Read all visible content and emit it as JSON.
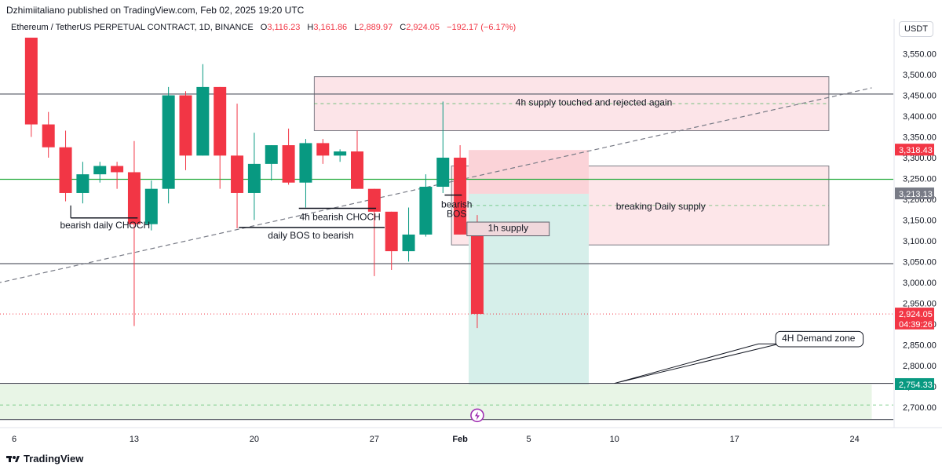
{
  "header": {
    "published": "Dzhimiitaliano published on TradingView.com, Feb 02, 2025 19:20 UTC"
  },
  "legend": {
    "symbol": "Ethereum / TetherUS PERPETUAL CONTRACT, 1D, BINANCE",
    "o_label": "O",
    "o_value": "3,116.23",
    "h_label": "H",
    "h_value": "3,161.86",
    "l_label": "L",
    "l_value": "2,889.97",
    "c_label": "C",
    "c_value": "2,924.05",
    "change": "−192.17 (−6.17%)"
  },
  "currency": "USDT",
  "footer": {
    "brand": "TradingView"
  },
  "colors": {
    "up": "#089981",
    "down": "#f23645",
    "supply": "#fce4e8",
    "demand": "#e7f5e6",
    "target": "#d6f0ec"
  },
  "chart_data": {
    "type": "candlestick",
    "y_ticks": [
      "3,550.00",
      "3,500.00",
      "3,450.00",
      "3,400.00",
      "3,350.00",
      "3,300.00",
      "3,250.00",
      "3,200.00",
      "3,150.00",
      "3,100.00",
      "3,050.00",
      "3,000.00",
      "2,950.00",
      "2,900.00",
      "2,850.00",
      "2,800.00",
      "2,750.00",
      "2,700.00"
    ],
    "y_tick_values": [
      3550,
      3500,
      3450,
      3400,
      3350,
      3300,
      3250,
      3200,
      3150,
      3100,
      3050,
      3000,
      2950,
      2900,
      2850,
      2800,
      2750,
      2700
    ],
    "x_ticks": [
      "6",
      "13",
      "20",
      "27",
      "Feb",
      "5",
      "10",
      "17",
      "24"
    ],
    "x_tick_days": [
      0,
      7,
      14,
      21,
      26,
      30,
      35,
      42,
      49
    ],
    "ylim": [
      2665,
      3595
    ],
    "candles": [
      {
        "d": 1,
        "o": 3690,
        "h": 3700,
        "l": 3350,
        "c": 3380
      },
      {
        "d": 2,
        "o": 3380,
        "h": 3410,
        "l": 3300,
        "c": 3325
      },
      {
        "d": 3,
        "o": 3325,
        "h": 3365,
        "l": 3195,
        "c": 3215
      },
      {
        "d": 4,
        "o": 3215,
        "h": 3290,
        "l": 3190,
        "c": 3260
      },
      {
        "d": 5,
        "o": 3260,
        "h": 3290,
        "l": 3240,
        "c": 3280
      },
      {
        "d": 6,
        "o": 3280,
        "h": 3290,
        "l": 3225,
        "c": 3265
      },
      {
        "d": 7,
        "o": 3265,
        "h": 3340,
        "l": 2895,
        "c": 3140
      },
      {
        "d": 8,
        "o": 3140,
        "h": 3245,
        "l": 3125,
        "c": 3225
      },
      {
        "d": 9,
        "o": 3225,
        "h": 3470,
        "l": 3190,
        "c": 3450
      },
      {
        "d": 10,
        "o": 3450,
        "h": 3460,
        "l": 3270,
        "c": 3305
      },
      {
        "d": 11,
        "o": 3305,
        "h": 3525,
        "l": 3305,
        "c": 3470
      },
      {
        "d": 12,
        "o": 3470,
        "h": 3470,
        "l": 3225,
        "c": 3305
      },
      {
        "d": 13,
        "o": 3305,
        "h": 3430,
        "l": 3130,
        "c": 3215
      },
      {
        "d": 14,
        "o": 3215,
        "h": 3360,
        "l": 3150,
        "c": 3285
      },
      {
        "d": 15,
        "o": 3285,
        "h": 3330,
        "l": 3245,
        "c": 3330
      },
      {
        "d": 16,
        "o": 3330,
        "h": 3370,
        "l": 3235,
        "c": 3240
      },
      {
        "d": 17,
        "o": 3240,
        "h": 3345,
        "l": 3180,
        "c": 3335
      },
      {
        "d": 18,
        "o": 3335,
        "h": 3345,
        "l": 3285,
        "c": 3305
      },
      {
        "d": 19,
        "o": 3305,
        "h": 3320,
        "l": 3290,
        "c": 3315
      },
      {
        "d": 20,
        "o": 3315,
        "h": 3365,
        "l": 3225,
        "c": 3225
      },
      {
        "d": 21,
        "o": 3225,
        "h": 3225,
        "l": 3015,
        "c": 3170
      },
      {
        "d": 22,
        "o": 3170,
        "h": 3170,
        "l": 3030,
        "c": 3075
      },
      {
        "d": 23,
        "o": 3075,
        "h": 3180,
        "l": 3050,
        "c": 3115
      },
      {
        "d": 24,
        "o": 3115,
        "h": 3260,
        "l": 3110,
        "c": 3230
      },
      {
        "d": 25,
        "o": 3230,
        "h": 3435,
        "l": 3215,
        "c": 3300
      },
      {
        "d": 26,
        "o": 3300,
        "h": 3330,
        "l": 3115,
        "c": 3115
      },
      {
        "d": 27,
        "o": 3116.23,
        "h": 3161.86,
        "l": 2889.97,
        "c": 2924.05
      }
    ],
    "zones": [
      {
        "name": "4h supply",
        "d0": 17.5,
        "d1": 47.5,
        "top": 3495,
        "bottom": 3365
      },
      {
        "name": "daily supply",
        "d0": 25.5,
        "d1": 47.5,
        "top": 3280,
        "bottom": 3090
      },
      {
        "name": "target",
        "d0": 26.5,
        "d1": 33.5,
        "top": 3213.13,
        "bottom": 2754.33
      },
      {
        "name": "stop",
        "d0": 26.5,
        "d1": 33.5,
        "top": 3318.43,
        "bottom": 3213.13
      },
      {
        "name": "4h demand",
        "d0": -1,
        "d1": 50,
        "top": 2754.33,
        "bottom": 2670
      }
    ],
    "h_lines": [
      {
        "y": 3453,
        "color": "#5d606b"
      },
      {
        "y": 3248,
        "color": "#22ab3c"
      },
      {
        "y": 3045,
        "color": "#5d606b"
      },
      {
        "y": 2757,
        "color": "#434651"
      },
      {
        "y": 2670,
        "color": "#5d606b"
      }
    ],
    "trend_line": {
      "d0": -1,
      "y0": 2998,
      "d1": 50,
      "y1": 3468
    },
    "annotations": {
      "supply_4h": "4h supply touched and rejected again",
      "breaking_daily": "breaking Daily supply",
      "bearish_choch": "bearish daily CHOCH",
      "h4_choch": "4h bearish CHOCH",
      "daily_bos": "daily BOS to bearish",
      "bos_1": "bearish",
      "bos_2": "BOS",
      "supply_1h": "1h supply",
      "demand_4h": "4H Demand zone"
    },
    "price_labels": [
      {
        "text": "3,318.43",
        "y": 3318.43,
        "color": "#f23645"
      },
      {
        "text": "3,213.13",
        "y": 3213.13,
        "color": "#787b86"
      },
      {
        "text": "2,924.05",
        "y": 2924.05,
        "color": "#f23645"
      },
      {
        "text": "04:39:26",
        "y": 2900,
        "color": "#f23645"
      },
      {
        "text": "2,754.33",
        "y": 2754.33,
        "color": "#089981"
      }
    ]
  }
}
